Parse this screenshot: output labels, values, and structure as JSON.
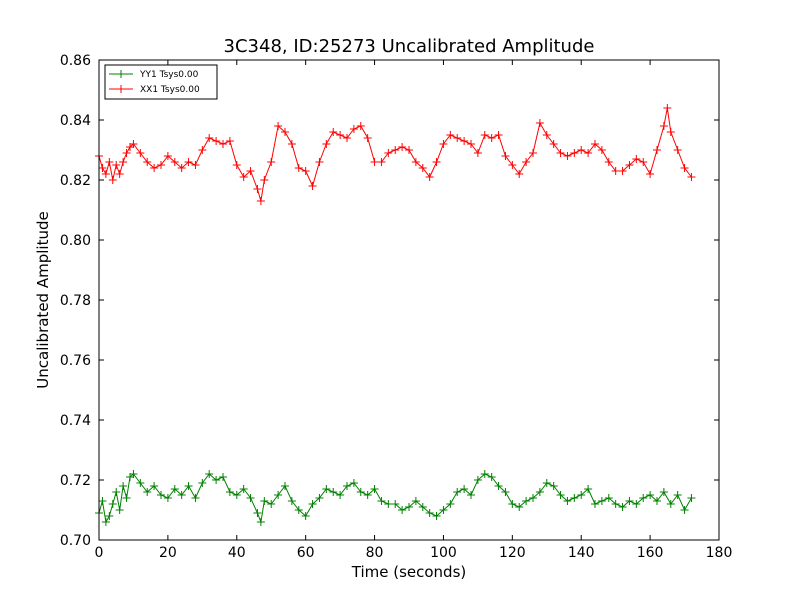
{
  "chart_data": {
    "type": "line",
    "title": "3C348, ID:25273 Uncalibrated Amplitude",
    "xlabel": "Time (seconds)",
    "ylabel": "Uncalibrated Amplitude",
    "xlim": [
      0,
      180
    ],
    "ylim": [
      0.7,
      0.86
    ],
    "xticks": [
      0,
      20,
      40,
      60,
      80,
      100,
      120,
      140,
      160,
      180
    ],
    "yticks": [
      0.7,
      0.72,
      0.74,
      0.76,
      0.78,
      0.8,
      0.82,
      0.84,
      0.86
    ],
    "grid": false,
    "legend_position": "top-left",
    "marker": "+",
    "series": [
      {
        "name": "YY1 Tsys0.00",
        "color": "#008000",
        "x": [
          0,
          1,
          2,
          3,
          4,
          5,
          6,
          7,
          8,
          9,
          10,
          12,
          14,
          16,
          18,
          20,
          22,
          24,
          26,
          28,
          30,
          32,
          34,
          36,
          38,
          40,
          42,
          44,
          46,
          47,
          48,
          50,
          52,
          54,
          56,
          58,
          60,
          62,
          64,
          66,
          68,
          70,
          72,
          74,
          76,
          78,
          80,
          82,
          84,
          86,
          88,
          90,
          92,
          94,
          96,
          98,
          100,
          102,
          104,
          106,
          108,
          110,
          112,
          114,
          116,
          118,
          120,
          122,
          124,
          126,
          128,
          130,
          132,
          134,
          136,
          138,
          140,
          142,
          144,
          146,
          148,
          150,
          152,
          154,
          156,
          158,
          160,
          162,
          164,
          166,
          168,
          170,
          172
        ],
        "y": [
          0.709,
          0.713,
          0.706,
          0.708,
          0.712,
          0.716,
          0.71,
          0.718,
          0.714,
          0.721,
          0.722,
          0.719,
          0.716,
          0.718,
          0.715,
          0.714,
          0.717,
          0.715,
          0.718,
          0.714,
          0.719,
          0.722,
          0.72,
          0.721,
          0.716,
          0.715,
          0.717,
          0.714,
          0.709,
          0.706,
          0.713,
          0.712,
          0.715,
          0.718,
          0.713,
          0.71,
          0.708,
          0.712,
          0.714,
          0.717,
          0.716,
          0.715,
          0.718,
          0.719,
          0.716,
          0.715,
          0.717,
          0.713,
          0.712,
          0.712,
          0.71,
          0.711,
          0.713,
          0.711,
          0.709,
          0.708,
          0.71,
          0.712,
          0.716,
          0.717,
          0.715,
          0.72,
          0.722,
          0.721,
          0.718,
          0.716,
          0.712,
          0.711,
          0.713,
          0.714,
          0.716,
          0.719,
          0.718,
          0.715,
          0.713,
          0.714,
          0.715,
          0.717,
          0.712,
          0.713,
          0.714,
          0.712,
          0.711,
          0.713,
          0.712,
          0.714,
          0.715,
          0.713,
          0.716,
          0.712,
          0.715,
          0.71,
          0.714
        ]
      },
      {
        "name": "XX1 Tsys0.00",
        "color": "#ff0000",
        "x": [
          0,
          1,
          2,
          3,
          4,
          5,
          6,
          7,
          8,
          9,
          10,
          12,
          14,
          16,
          18,
          20,
          22,
          24,
          26,
          28,
          30,
          32,
          34,
          36,
          38,
          40,
          42,
          44,
          46,
          47,
          48,
          50,
          52,
          54,
          56,
          58,
          60,
          62,
          64,
          66,
          68,
          70,
          72,
          74,
          76,
          78,
          80,
          82,
          84,
          86,
          88,
          90,
          92,
          94,
          96,
          98,
          100,
          102,
          104,
          106,
          108,
          110,
          112,
          114,
          116,
          118,
          120,
          122,
          124,
          126,
          128,
          130,
          132,
          134,
          136,
          138,
          140,
          142,
          144,
          146,
          148,
          150,
          152,
          154,
          156,
          158,
          160,
          162,
          164,
          165,
          166,
          168,
          170,
          172
        ],
        "y": [
          0.828,
          0.824,
          0.822,
          0.826,
          0.82,
          0.825,
          0.822,
          0.826,
          0.829,
          0.831,
          0.832,
          0.829,
          0.826,
          0.824,
          0.825,
          0.828,
          0.826,
          0.824,
          0.826,
          0.825,
          0.83,
          0.834,
          0.833,
          0.832,
          0.833,
          0.825,
          0.821,
          0.823,
          0.817,
          0.813,
          0.82,
          0.826,
          0.838,
          0.836,
          0.832,
          0.824,
          0.823,
          0.818,
          0.826,
          0.832,
          0.836,
          0.835,
          0.834,
          0.837,
          0.838,
          0.834,
          0.826,
          0.826,
          0.829,
          0.83,
          0.831,
          0.83,
          0.826,
          0.824,
          0.821,
          0.826,
          0.832,
          0.835,
          0.834,
          0.833,
          0.832,
          0.829,
          0.835,
          0.834,
          0.835,
          0.828,
          0.825,
          0.822,
          0.826,
          0.829,
          0.839,
          0.835,
          0.832,
          0.829,
          0.828,
          0.829,
          0.83,
          0.829,
          0.832,
          0.83,
          0.826,
          0.823,
          0.823,
          0.825,
          0.827,
          0.826,
          0.822,
          0.83,
          0.838,
          0.844,
          0.836,
          0.83,
          0.824,
          0.821
        ]
      }
    ]
  }
}
